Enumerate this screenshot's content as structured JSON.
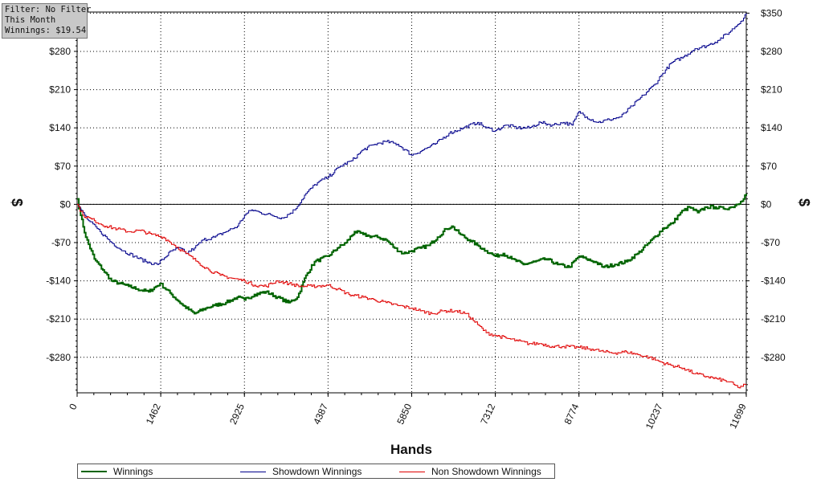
{
  "info": {
    "filter": "Filter: No Filter",
    "period": "This Month",
    "winnings": "Winnings: $19.54"
  },
  "chart_data": {
    "type": "line",
    "xlabel": "Hands",
    "ylabel_left": "$",
    "ylabel_right": "$",
    "xlim": [
      0,
      11699
    ],
    "ylim": [
      -345,
      352
    ],
    "x_ticks": [
      0,
      1462,
      2925,
      4387,
      5850,
      7312,
      8774,
      10237,
      11699
    ],
    "y_ticks": [
      -280,
      -210,
      -140,
      -70,
      0,
      70,
      140,
      210,
      280,
      350
    ],
    "y_tick_labels": [
      "-$280",
      "-$210",
      "-$140",
      "-$70",
      "$0",
      "$70",
      "$140",
      "$210",
      "$280",
      "$350"
    ],
    "grid": true,
    "legend_position": "bottom",
    "series": [
      {
        "name": "Winnings",
        "color": "#006400",
        "x": [
          0,
          60,
          150,
          300,
          450,
          600,
          750,
          900,
          1050,
          1250,
          1450,
          1650,
          1850,
          2050,
          2250,
          2400,
          2600,
          2800,
          2925,
          3100,
          3300,
          3500,
          3700,
          3850,
          4000,
          4150,
          4387,
          4550,
          4700,
          4850,
          5000,
          5100,
          5250,
          5400,
          5550,
          5700,
          5850,
          6000,
          6150,
          6300,
          6450,
          6550,
          6700,
          6850,
          7000,
          7150,
          7312,
          7450,
          7600,
          7800,
          8000,
          8200,
          8400,
          8600,
          8774,
          8900,
          9050,
          9200,
          9400,
          9600,
          9800,
          10000,
          10237,
          10400,
          10550,
          10700,
          10850,
          11000,
          11150,
          11300,
          11450,
          11600,
          11699
        ],
        "values": [
          10,
          -20,
          -60,
          -100,
          -120,
          -140,
          -145,
          -150,
          -155,
          -160,
          -145,
          -165,
          -185,
          -200,
          -190,
          -185,
          -180,
          -170,
          -175,
          -165,
          -160,
          -170,
          -180,
          -170,
          -130,
          -105,
          -95,
          -80,
          -70,
          -50,
          -55,
          -58,
          -60,
          -65,
          -80,
          -90,
          -85,
          -80,
          -75,
          -60,
          -45,
          -40,
          -55,
          -65,
          -75,
          -85,
          -95,
          -90,
          -100,
          -110,
          -105,
          -100,
          -110,
          -115,
          -95,
          -100,
          -105,
          -115,
          -110,
          -105,
          -90,
          -70,
          -45,
          -35,
          -15,
          -5,
          -15,
          -5,
          -5,
          -8,
          -5,
          5,
          19.54
        ]
      },
      {
        "name": "Showdown Winnings",
        "color": "#00008b",
        "x": [
          0,
          60,
          200,
          400,
          600,
          800,
          1000,
          1200,
          1400,
          1650,
          1800,
          1900,
          2050,
          2200,
          2400,
          2600,
          2800,
          2925,
          3050,
          3200,
          3400,
          3600,
          3800,
          4000,
          4200,
          4387,
          4600,
          4800,
          5000,
          5200,
          5400,
          5600,
          5850,
          6050,
          6250,
          6500,
          6750,
          7000,
          7150,
          7312,
          7500,
          7700,
          7900,
          8100,
          8300,
          8500,
          8650,
          8774,
          8900,
          9100,
          9300,
          9500,
          9700,
          9900,
          10100,
          10237,
          10400,
          10600,
          10800,
          11000,
          11200,
          11400,
          11600,
          11699
        ],
        "values": [
          0,
          -10,
          -30,
          -50,
          -70,
          -85,
          -95,
          -105,
          -110,
          -85,
          -80,
          -90,
          -80,
          -65,
          -60,
          -50,
          -40,
          -20,
          -10,
          -15,
          -20,
          -25,
          -10,
          20,
          40,
          50,
          70,
          80,
          100,
          110,
          115,
          110,
          90,
          100,
          110,
          130,
          140,
          150,
          140,
          135,
          145,
          140,
          140,
          150,
          145,
          150,
          145,
          170,
          160,
          150,
          155,
          160,
          180,
          200,
          220,
          240,
          260,
          270,
          285,
          290,
          300,
          315,
          335,
          350
        ]
      },
      {
        "name": "Non Showdown Winnings",
        "color": "#e00000",
        "x": [
          0,
          100,
          300,
          500,
          700,
          900,
          1100,
          1300,
          1500,
          1700,
          1900,
          2100,
          2300,
          2500,
          2700,
          2925,
          3100,
          3300,
          3500,
          3700,
          3900,
          4100,
          4387,
          4550,
          4750,
          5000,
          5200,
          5400,
          5600,
          5850,
          6000,
          6200,
          6400,
          6600,
          6800,
          7000,
          7150,
          7312,
          7500,
          7700,
          7900,
          8100,
          8300,
          8500,
          8774,
          9000,
          9200,
          9400,
          9600,
          9800,
          10000,
          10237,
          10400,
          10600,
          10800,
          11000,
          11200,
          11400,
          11550,
          11699
        ],
        "values": [
          0,
          -20,
          -30,
          -40,
          -45,
          -50,
          -48,
          -55,
          -60,
          -75,
          -90,
          -105,
          -120,
          -130,
          -135,
          -140,
          -148,
          -150,
          -140,
          -145,
          -150,
          -150,
          -148,
          -155,
          -165,
          -170,
          -175,
          -180,
          -185,
          -190,
          -195,
          -200,
          -195,
          -195,
          -200,
          -220,
          -235,
          -240,
          -245,
          -250,
          -255,
          -255,
          -260,
          -260,
          -262,
          -265,
          -270,
          -272,
          -270,
          -275,
          -280,
          -290,
          -295,
          -300,
          -310,
          -315,
          -320,
          -325,
          -335,
          -330
        ]
      }
    ]
  }
}
